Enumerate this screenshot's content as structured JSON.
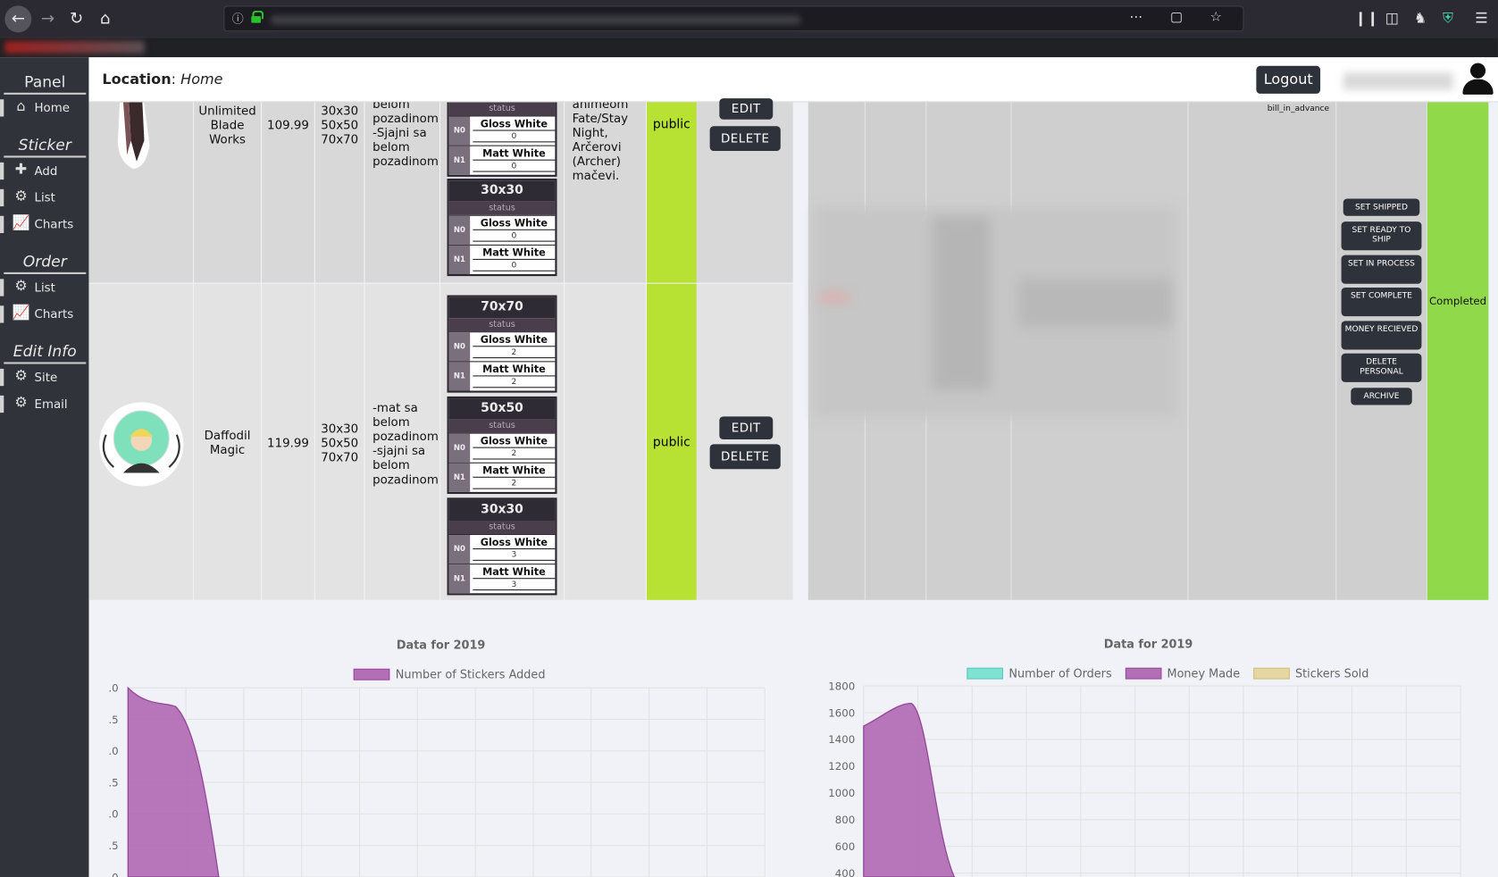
{
  "browser": {
    "url_info_icon": "info-icon",
    "actions": [
      "more-icon",
      "pocket-icon",
      "star-icon"
    ],
    "right_icons": [
      "library-icon",
      "sidebar-icon",
      "extension-icon",
      "shield-icon",
      "menu-icon"
    ]
  },
  "sidebar": {
    "panel_title": "Panel",
    "home_label": "Home",
    "sticker_title": "Sticker",
    "sticker_items": [
      {
        "label": "Add",
        "icon": "plus-icon"
      },
      {
        "label": "List",
        "icon": "gear-icon"
      },
      {
        "label": "Charts",
        "icon": "chart-icon"
      }
    ],
    "order_title": "Order",
    "order_items": [
      {
        "label": "List",
        "icon": "gear-icon"
      },
      {
        "label": "Charts",
        "icon": "chart-icon"
      }
    ],
    "edit_title": "Edit Info",
    "edit_items": [
      {
        "label": "Site",
        "icon": "gear-icon"
      },
      {
        "label": "Email",
        "icon": "gear-icon"
      }
    ]
  },
  "header": {
    "location_label": "Location",
    "location_value": "Home",
    "logout_label": "Logout"
  },
  "stickers": [
    {
      "name_lines": [
        "Unlimited",
        "Blade",
        "Works"
      ],
      "price": "109.99",
      "sizes": [
        "30x30",
        "50x50",
        "70x70"
      ],
      "desc_lines": [
        "belom",
        "pozadinom",
        "-Sjajni sa",
        "belom",
        "pozadinom"
      ],
      "tags_lines": [
        "animeom",
        "Fate/Stay",
        "Night,",
        "Arčerovi",
        "(Archer)",
        "mačevi."
      ],
      "visibility": "public",
      "edit_label": "EDIT",
      "delete_label": "DELETE",
      "variants": [
        {
          "size": "",
          "status": "status",
          "n0_tag": "N0",
          "n0_name": "Gloss White",
          "n0_count": "0",
          "n1_tag": "N1",
          "n1_name": "Matt White",
          "n1_count": "0"
        },
        {
          "size": "30x30",
          "status": "status",
          "n0_tag": "N0",
          "n0_name": "Gloss White",
          "n0_count": "0",
          "n1_tag": "N1",
          "n1_name": "Matt White",
          "n1_count": "0"
        }
      ]
    },
    {
      "name_lines": [
        "Daffodil",
        "Magic"
      ],
      "price": "119.99",
      "sizes": [
        "30x30",
        "50x50",
        "70x70"
      ],
      "desc_lines": [
        "-mat sa",
        "belom",
        "pozadinom",
        "-sjajni sa",
        "belom",
        "pozadinom"
      ],
      "visibility": "public",
      "edit_label": "EDIT",
      "delete_label": "DELETE",
      "variants": [
        {
          "size": "70x70",
          "status": "status",
          "n0_tag": "N0",
          "n0_name": "Gloss White",
          "n0_count": "2",
          "n1_tag": "N1",
          "n1_name": "Matt White",
          "n1_count": "2"
        },
        {
          "size": "50x50",
          "status": "status",
          "n0_tag": "N0",
          "n0_name": "Gloss White",
          "n0_count": "2",
          "n1_tag": "N1",
          "n1_name": "Matt White",
          "n1_count": "2"
        },
        {
          "size": "30x30",
          "status": "status",
          "n0_tag": "N0",
          "n0_name": "Gloss White",
          "n0_count": "3",
          "n1_tag": "N1",
          "n1_name": "Matt White",
          "n1_count": "3"
        }
      ]
    }
  ],
  "order": {
    "billing": "bill_in_advance",
    "actions": [
      "SET SHIPPED",
      "SET READY TO SHIP",
      "SET IN PROCESS",
      "SET COMPLETE",
      "MONEY RECIEVED",
      "DELETE PERSONAL",
      "ARCHIVE"
    ],
    "status": "Completed"
  },
  "chart_data": [
    {
      "type": "area",
      "title": "Data for 2019",
      "series": [
        {
          "name": "Number of Stickers Added",
          "color": "#b36fb6"
        }
      ],
      "y_ticks_visible": [
        ".0",
        ".5",
        ".0",
        ".5",
        ".0",
        ".5",
        "0"
      ],
      "points": [
        {
          "y": 4.0
        },
        {
          "y": 3.6
        },
        {
          "y": 3.0
        },
        {
          "y": 0.0
        }
      ],
      "ylim": [
        0,
        4.0
      ]
    },
    {
      "type": "area",
      "title": "Data for 2019",
      "series": [
        {
          "name": "Number of Orders",
          "color": "#7fe2d2"
        },
        {
          "name": "Money Made",
          "color": "#b36fb6"
        },
        {
          "name": "Stickers Sold",
          "color": "#e5d7a1"
        }
      ],
      "y_ticks": [
        "1800",
        "1600",
        "1400",
        "1200",
        "1000",
        "800",
        "600",
        "400"
      ],
      "money_points": [
        1500,
        1670,
        1600,
        400
      ],
      "ylim": [
        400,
        1800
      ]
    }
  ]
}
